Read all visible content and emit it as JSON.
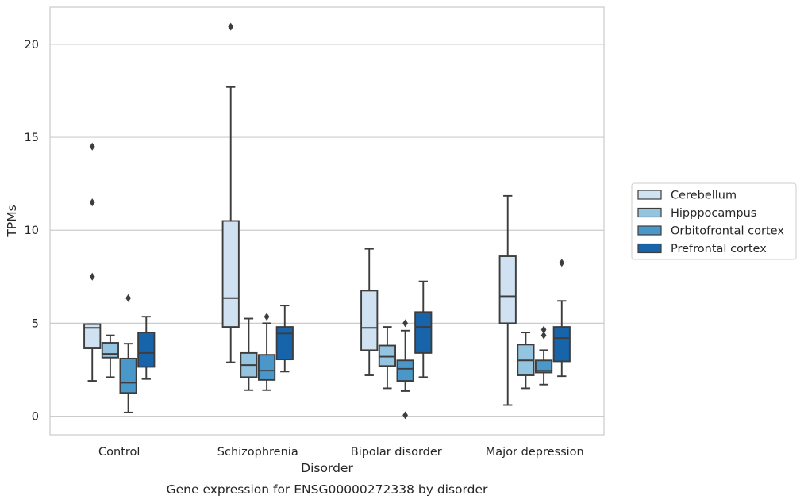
{
  "chart_data": {
    "type": "boxplot",
    "caption": "Gene expression for ENSG00000272338 by disorder",
    "xlabel": "Disorder",
    "ylabel": "TPMs",
    "ylim": [
      -1,
      22
    ],
    "yticks": [
      0,
      5,
      10,
      15,
      20
    ],
    "grid": true,
    "legend_position": "right",
    "categories": [
      "Control",
      "Schizophrenia",
      "Bipolar disorder",
      "Major depression"
    ],
    "series": [
      {
        "name": "Cerebellum",
        "color": "#d0e1f2",
        "boxes": [
          {
            "whislo": 1.9,
            "q1": 3.65,
            "med": 4.75,
            "q3": 4.95,
            "whishi": 4.95,
            "fliers": [
              7.5,
              11.5,
              14.5
            ]
          },
          {
            "whislo": 2.9,
            "q1": 4.8,
            "med": 6.35,
            "q3": 10.5,
            "whishi": 17.7,
            "fliers": [
              20.95
            ]
          },
          {
            "whislo": 2.2,
            "q1": 3.55,
            "med": 4.75,
            "q3": 6.75,
            "whishi": 9.0,
            "fliers": []
          },
          {
            "whislo": 0.6,
            "q1": 5.0,
            "med": 6.45,
            "q3": 8.6,
            "whishi": 11.85,
            "fliers": []
          }
        ]
      },
      {
        "name": "Hipppocampus",
        "color": "#94c4df",
        "boxes": [
          {
            "whislo": 2.1,
            "q1": 3.15,
            "med": 3.35,
            "q3": 3.95,
            "whishi": 4.35,
            "fliers": []
          },
          {
            "whislo": 1.4,
            "q1": 2.1,
            "med": 2.75,
            "q3": 3.4,
            "whishi": 5.25,
            "fliers": []
          },
          {
            "whislo": 1.5,
            "q1": 2.7,
            "med": 3.2,
            "q3": 3.8,
            "whishi": 4.8,
            "fliers": []
          },
          {
            "whislo": 1.5,
            "q1": 2.2,
            "med": 3.0,
            "q3": 3.85,
            "whishi": 4.5,
            "fliers": []
          }
        ]
      },
      {
        "name": "Orbitofrontal cortex",
        "color": "#4a98c9",
        "boxes": [
          {
            "whislo": 0.2,
            "q1": 1.25,
            "med": 1.8,
            "q3": 3.1,
            "whishi": 3.9,
            "fliers": [
              6.35
            ]
          },
          {
            "whislo": 1.4,
            "q1": 1.95,
            "med": 2.45,
            "q3": 3.3,
            "whishi": 5.0,
            "fliers": [
              5.35
            ]
          },
          {
            "whislo": 1.35,
            "q1": 1.9,
            "med": 2.55,
            "q3": 3.0,
            "whishi": 4.6,
            "fliers": [
              0.05,
              5.0
            ]
          },
          {
            "whislo": 1.7,
            "q1": 2.35,
            "med": 2.45,
            "q3": 3.0,
            "whishi": 3.55,
            "fliers": [
              4.35,
              4.65
            ]
          }
        ]
      },
      {
        "name": "Prefrontal cortex",
        "color": "#1764ab",
        "boxes": [
          {
            "whislo": 2.0,
            "q1": 2.65,
            "med": 3.4,
            "q3": 4.5,
            "whishi": 5.35,
            "fliers": []
          },
          {
            "whislo": 2.4,
            "q1": 3.05,
            "med": 4.45,
            "q3": 4.8,
            "whishi": 5.95,
            "fliers": []
          },
          {
            "whislo": 2.1,
            "q1": 3.4,
            "med": 4.8,
            "q3": 5.6,
            "whishi": 7.25,
            "fliers": []
          },
          {
            "whislo": 2.15,
            "q1": 2.95,
            "med": 4.2,
            "q3": 4.8,
            "whishi": 6.2,
            "fliers": [
              8.25
            ]
          }
        ]
      }
    ]
  }
}
